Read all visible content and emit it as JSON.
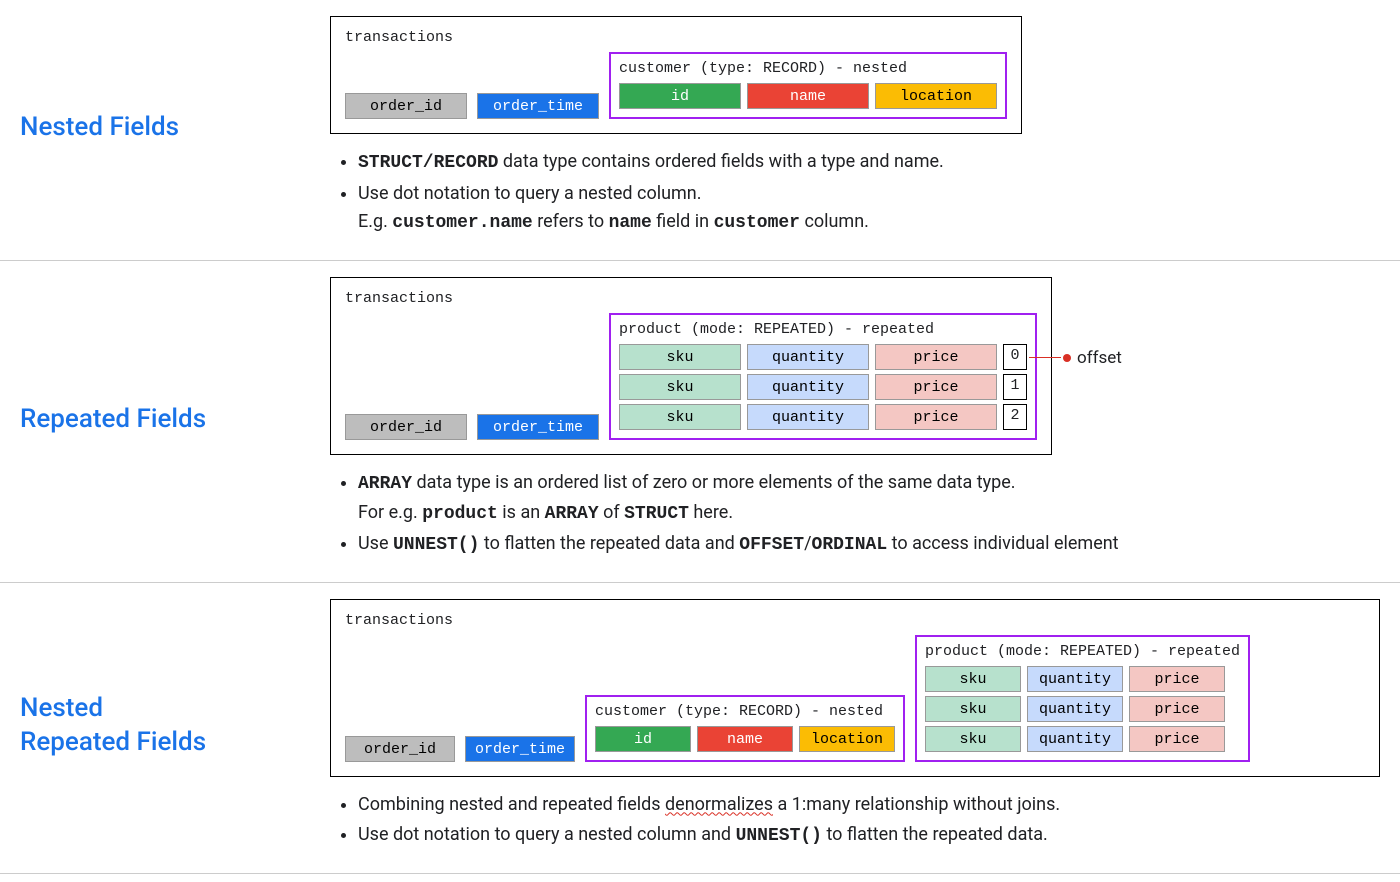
{
  "colors": {
    "title": "#1a73e8",
    "border": "#000000",
    "nested_border": "#a020f0",
    "gray_bg": "#bdbdbd",
    "gray_txt": "#000000",
    "blue_bg": "#1a73e8",
    "blue_txt": "#ffffff",
    "green_bg": "#34a853",
    "green_txt": "#ffffff",
    "red_bg": "#ea4335",
    "red_txt": "#ffffff",
    "yellow_bg": "#fbbc04",
    "yellow_txt": "#000000",
    "lt_green_bg": "#b7e1cd",
    "lt_blue_bg": "#c6dafc",
    "lt_pink_bg": "#f4c7c3",
    "lt_txt": "#000000",
    "callout": "#d93025"
  },
  "section1": {
    "title": "Nested Fields",
    "table_label": "transactions",
    "base_cols": [
      "order_id",
      "order_time"
    ],
    "nested_title": "customer (type: RECORD) - nested",
    "nested_cols": [
      "id",
      "name",
      "location"
    ],
    "bullet1_a": "STRUCT/RECORD",
    "bullet1_b": " data type contains ordered fields with a type and name.",
    "bullet2_a": "Use dot notation to query a nested column.",
    "bullet2_b": "E.g. ",
    "bullet2_c": "customer.name",
    "bullet2_d": " refers to ",
    "bullet2_e": "name",
    "bullet2_f": " field in ",
    "bullet2_g": "customer",
    "bullet2_h": " column."
  },
  "section2": {
    "title": "Repeated Fields",
    "table_label": "transactions",
    "base_cols": [
      "order_id",
      "order_time"
    ],
    "nested_title": "product (mode: REPEATED) - repeated",
    "repeated_cols": [
      "sku",
      "quantity",
      "price"
    ],
    "offsets": [
      "0",
      "1",
      "2"
    ],
    "offset_label": "offset",
    "bullet1_a": "ARRAY",
    "bullet1_b": " data type is an ordered list of zero or more elements of the same data type.",
    "bullet1_c": "For e.g. ",
    "bullet1_d": "product",
    "bullet1_e": " is an ",
    "bullet1_f": "ARRAY",
    "bullet1_g": " of ",
    "bullet1_h": "STRUCT",
    "bullet1_i": " here.",
    "bullet2_a": "Use ",
    "bullet2_b": "UNNEST()",
    "bullet2_c": " to flatten the repeated data and ",
    "bullet2_d": "OFFSET",
    "bullet2_e": "/",
    "bullet2_f": "ORDINAL",
    "bullet2_g": " to access individual element"
  },
  "section3": {
    "title_line1": "Nested",
    "title_line2": "Repeated Fields",
    "table_label": "transactions",
    "base_cols": [
      "order_id",
      "order_time"
    ],
    "nested_title1": "customer (type: RECORD) - nested",
    "nested_cols": [
      "id",
      "name",
      "location"
    ],
    "nested_title2": "product (mode: REPEATED) - repeated",
    "repeated_cols": [
      "sku",
      "quantity",
      "price"
    ],
    "bullet1_a": "Combining nested and repeated fields ",
    "bullet1_b": "denormalizes",
    "bullet1_c": " a 1:many relationship without joins.",
    "bullet2_a": "Use dot notation to query a nested column and ",
    "bullet2_b": "UNNEST()",
    "bullet2_c": " to flatten the repeated data."
  }
}
